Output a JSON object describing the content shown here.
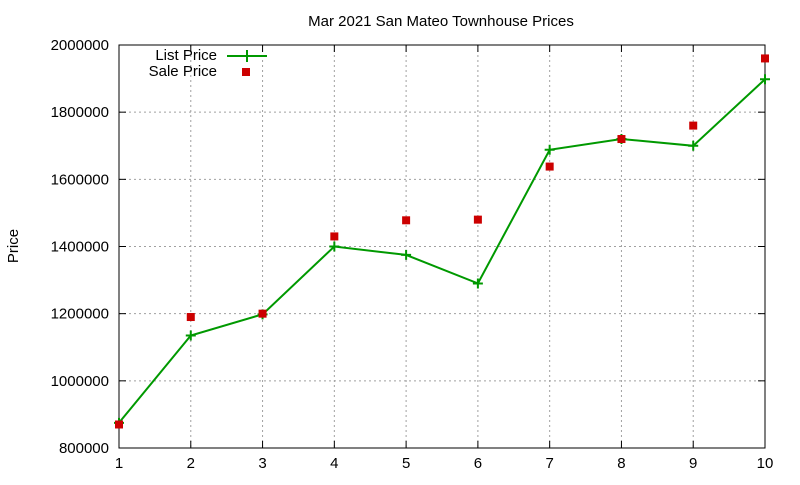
{
  "chart_data": {
    "type": "line",
    "title": "Mar 2021 San Mateo Townhouse Prices",
    "xlabel": "",
    "ylabel": "Price",
    "x": [
      1,
      2,
      3,
      4,
      5,
      6,
      7,
      8,
      9,
      10
    ],
    "xlim": [
      1,
      10
    ],
    "ylim": [
      800000,
      2000000
    ],
    "xticks": [
      "1",
      "2",
      "3",
      "4",
      "5",
      "6",
      "7",
      "8",
      "9",
      "10"
    ],
    "yticks": [
      "800000",
      "1000000",
      "1200000",
      "1400000",
      "1600000",
      "1800000",
      "2000000"
    ],
    "grid": true,
    "legend_position": "top-left",
    "series": [
      {
        "name": "List Price",
        "kind": "line+points",
        "marker": "plus",
        "color": "#009900",
        "values": [
          875000,
          1135000,
          1198000,
          1400000,
          1375000,
          1290000,
          1688000,
          1720000,
          1700000,
          1898000
        ]
      },
      {
        "name": "Sale Price",
        "kind": "points",
        "marker": "square",
        "color": "#cc0000",
        "values": [
          870000,
          1190000,
          1200000,
          1430000,
          1478000,
          1480000,
          1638000,
          1720000,
          1760000,
          1960000
        ]
      }
    ]
  }
}
